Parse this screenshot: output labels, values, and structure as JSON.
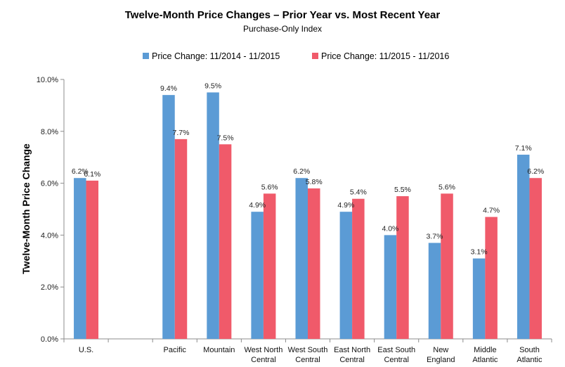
{
  "chart_data": {
    "type": "bar",
    "title": "Twelve-Month Price Changes – Prior Year vs. Most Recent Year",
    "subtitle": "Purchase-Only Index",
    "xlabel": "",
    "ylabel": "Twelve-Month Price Change",
    "ylim": [
      0,
      10
    ],
    "yticks": [
      "0.0%",
      "2.0%",
      "4.0%",
      "6.0%",
      "8.0%",
      "10.0%"
    ],
    "ytick_values": [
      0,
      2,
      4,
      6,
      8,
      10
    ],
    "legend_position": "top",
    "grid": false,
    "categories": [
      [
        "U.S."
      ],
      [
        ""
      ],
      [
        "Pacific"
      ],
      [
        "Mountain"
      ],
      [
        "West North",
        "Central"
      ],
      [
        "West South",
        "Central"
      ],
      [
        "East North",
        "Central"
      ],
      [
        "East South",
        "Central"
      ],
      [
        "New",
        "England"
      ],
      [
        "Middle",
        "Atlantic"
      ],
      [
        "South",
        "Atlantic"
      ]
    ],
    "series": [
      {
        "name": "Price Change:  11/2014 - 11/2015",
        "color": "#5B9BD5",
        "values": [
          6.2,
          null,
          9.4,
          9.5,
          4.9,
          6.2,
          4.9,
          4.0,
          3.7,
          3.1,
          7.1
        ],
        "labels": [
          "6.2%",
          "",
          "9.4%",
          "9.5%",
          "4.9%",
          "6.2%",
          "4.9%",
          "4.0%",
          "3.7%",
          "3.1%",
          "7.1%"
        ]
      },
      {
        "name": "Price Change:  11/2015 - 11/2016",
        "color": "#F05A6A",
        "values": [
          6.1,
          null,
          7.7,
          7.5,
          5.6,
          5.8,
          5.4,
          5.5,
          5.6,
          4.7,
          6.2
        ],
        "labels": [
          "6.1%",
          "",
          "7.7%",
          "7.5%",
          "5.6%",
          "5.8%",
          "5.4%",
          "5.5%",
          "5.6%",
          "4.7%",
          "6.2%"
        ]
      }
    ]
  }
}
